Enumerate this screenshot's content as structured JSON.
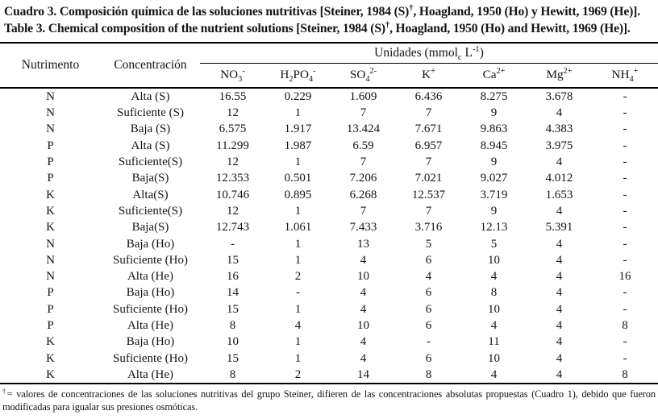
{
  "titles": {
    "es": "Cuadro 3. Composición química de las soluciones nutritivas [Steiner, 1984 (S)^†^, Hoagland, 1950 (Ho) y Hewitt, 1969 (He)].",
    "en": "Table 3. Chemical composition of the nutrient solutions [Steiner, 1984 (S)^†^, Hoagland, 1950 (Ho) and Hewitt, 1969 (He)]."
  },
  "table": {
    "headers": {
      "nutrient": "Nutrimento",
      "concentration": "Concentración",
      "units_group": "Unidades (mmol~c~ L^-1^)",
      "ions": [
        "NO~3~^-^",
        "H~2~PO~4~^-^",
        "SO~4~^2-^",
        "K^+^",
        "Ca^2+^",
        "Mg^2+^",
        "NH~4~^+^"
      ]
    },
    "rows": [
      {
        "nutrient": "N",
        "concentration": "Alta (S)",
        "values": [
          "16.55",
          "0.229",
          "1.609",
          "6.436",
          "8.275",
          "3.678",
          "-"
        ]
      },
      {
        "nutrient": "N",
        "concentration": "Suficiente (S)",
        "values": [
          "12",
          "1",
          "7",
          "7",
          "9",
          "4",
          "-"
        ]
      },
      {
        "nutrient": "N",
        "concentration": "Baja (S)",
        "values": [
          "6.575",
          "1.917",
          "13.424",
          "7.671",
          "9.863",
          "4.383",
          "-"
        ]
      },
      {
        "nutrient": "P",
        "concentration": "Alta (S)",
        "values": [
          "11.299",
          "1.987",
          "6.59",
          "6.957",
          "8.945",
          "3.975",
          "-"
        ]
      },
      {
        "nutrient": "P",
        "concentration": "Suficiente(S)",
        "values": [
          "12",
          "1",
          "7",
          "7",
          "9",
          "4",
          "-"
        ]
      },
      {
        "nutrient": "P",
        "concentration": "Baja(S)",
        "values": [
          "12.353",
          "0.501",
          "7.206",
          "7.021",
          "9.027",
          "4.012",
          "-"
        ]
      },
      {
        "nutrient": "K",
        "concentration": "Alta(S)",
        "values": [
          "10.746",
          "0.895",
          "6.268",
          "12.537",
          "3.719",
          "1.653",
          "-"
        ]
      },
      {
        "nutrient": "K",
        "concentration": "Suficiente(S)",
        "values": [
          "12",
          "1",
          "7",
          "7",
          "9",
          "4",
          "-"
        ]
      },
      {
        "nutrient": "K",
        "concentration": "Baja(S)",
        "values": [
          "12.743",
          "1.061",
          "7.433",
          "3.716",
          "12.13",
          "5.391",
          "-"
        ]
      },
      {
        "nutrient": "N",
        "concentration": "Baja (Ho)",
        "values": [
          "-",
          "1",
          "13",
          "5",
          "5",
          "4",
          "-"
        ]
      },
      {
        "nutrient": "N",
        "concentration": "Suficiente (Ho)",
        "values": [
          "15",
          "1",
          "4",
          "6",
          "10",
          "4",
          "-"
        ]
      },
      {
        "nutrient": "N",
        "concentration": "Alta (He)",
        "values": [
          "16",
          "2",
          "10",
          "4",
          "4",
          "4",
          "16"
        ]
      },
      {
        "nutrient": "P",
        "concentration": "Baja (Ho)",
        "values": [
          "14",
          "-",
          "4",
          "6",
          "8",
          "4",
          "-"
        ]
      },
      {
        "nutrient": "P",
        "concentration": "Suficiente (Ho)",
        "values": [
          "15",
          "1",
          "4",
          "6",
          "10",
          "4",
          "-"
        ]
      },
      {
        "nutrient": "P",
        "concentration": "Alta (He)",
        "values": [
          "8",
          "4",
          "10",
          "6",
          "4",
          "4",
          "8"
        ]
      },
      {
        "nutrient": "K",
        "concentration": "Baja (Ho)",
        "values": [
          "10",
          "1",
          "4",
          "-",
          "11",
          "4",
          "-"
        ]
      },
      {
        "nutrient": "K",
        "concentration": "Suficiente (Ho)",
        "values": [
          "15",
          "1",
          "4",
          "6",
          "10",
          "4",
          "-"
        ]
      },
      {
        "nutrient": "K",
        "concentration": "Alta (He)",
        "values": [
          "8",
          "2",
          "14",
          "8",
          "4",
          "4",
          "8"
        ]
      }
    ]
  },
  "footnote": "^†^= valores de concentraciones de las soluciones nutritivas del grupo Steiner, difieren de las concentraciones absolutas propuestas (Cuadro 1), debido que fueron modificadas para igualar sus presiones osmóticas.",
  "colors": {
    "text": "#141414",
    "rule": "#000000",
    "background": "#ffffff"
  }
}
